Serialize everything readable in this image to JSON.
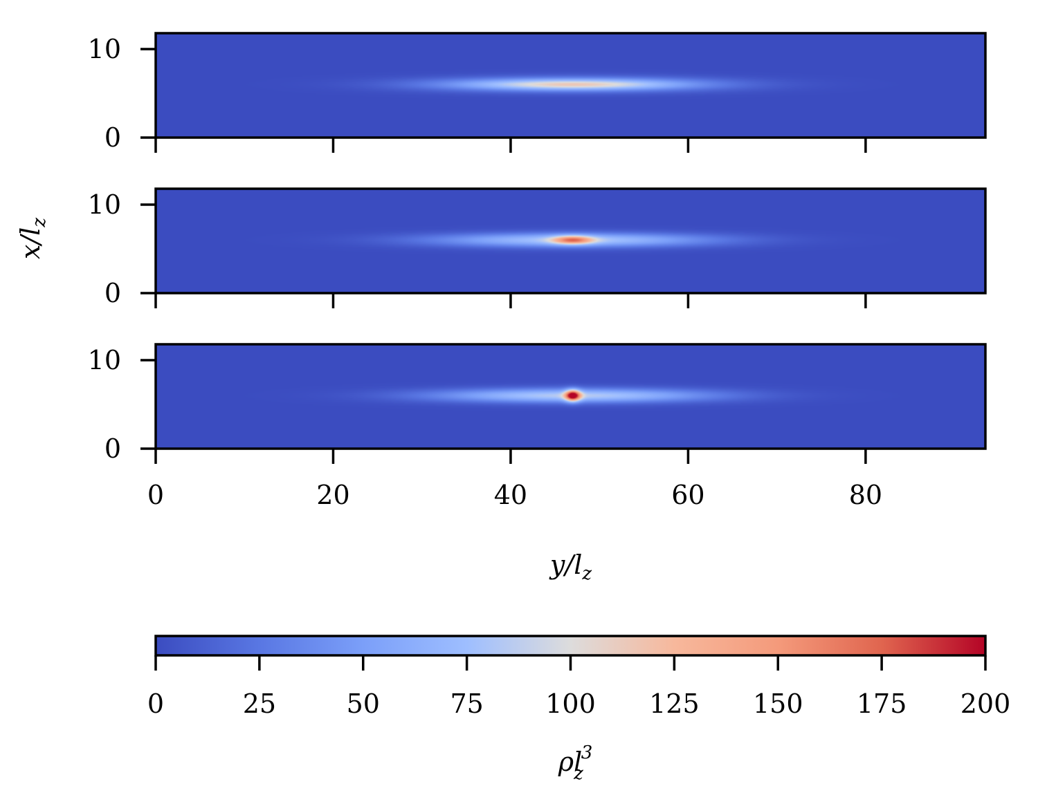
{
  "chart_data": {
    "type": "heatmap",
    "panels": [
      {
        "name": "",
        "xlim": [
          0,
          93.5
        ],
        "ylim": [
          0,
          11.8
        ],
        "x_ticks": [
          0,
          20,
          40,
          60,
          80
        ],
        "y_ticks": [
          0,
          10
        ],
        "show_x_tick_labels": false,
        "center": [
          47,
          6
        ],
        "envelope": {
          "width_y": 11,
          "width_x": 0.55,
          "peak": 80
        },
        "core": {
          "width_y": 7,
          "width_x": 0.35,
          "peak": 35
        }
      },
      {
        "name": "",
        "xlim": [
          0,
          93.5
        ],
        "ylim": [
          0,
          11.8
        ],
        "x_ticks": [
          0,
          20,
          40,
          60,
          80
        ],
        "y_ticks": [
          0,
          10
        ],
        "show_x_tick_labels": false,
        "center": [
          47,
          6
        ],
        "envelope": {
          "width_y": 11,
          "width_x": 0.55,
          "peak": 82
        },
        "core": {
          "width_y": 1.6,
          "width_x": 0.35,
          "peak": 95
        }
      },
      {
        "name": "",
        "xlim": [
          0,
          93.5
        ],
        "ylim": [
          0,
          11.8
        ],
        "x_ticks": [
          0,
          20,
          40,
          60,
          80
        ],
        "y_ticks": [
          0,
          10
        ],
        "show_x_tick_labels": true,
        "center": [
          47,
          6
        ],
        "envelope": {
          "width_y": 11,
          "width_x": 0.55,
          "peak": 85
        },
        "core": {
          "width_y": 0.6,
          "width_x": 0.45,
          "peak": 150
        }
      }
    ],
    "xlabel": "y/l_z",
    "ylabel": "x/l_z",
    "colorbar": {
      "label": "ρl_z^3",
      "colormap": "coolwarm",
      "range": [
        0,
        200
      ],
      "ticks": [
        0,
        25,
        50,
        75,
        100,
        125,
        150,
        175,
        200
      ]
    }
  },
  "labels": {
    "xlabel_main": "y/l",
    "xlabel_sub": "z",
    "ylabel_main": "x/l",
    "ylabel_sub": "z",
    "cbar_main": "ρl",
    "cbar_sub": "z",
    "cbar_sup": "3"
  },
  "colors": {
    "cmap_low": "#3b4cc0",
    "cmap_mid": "#dddddd",
    "cmap_high": "#b40426"
  }
}
